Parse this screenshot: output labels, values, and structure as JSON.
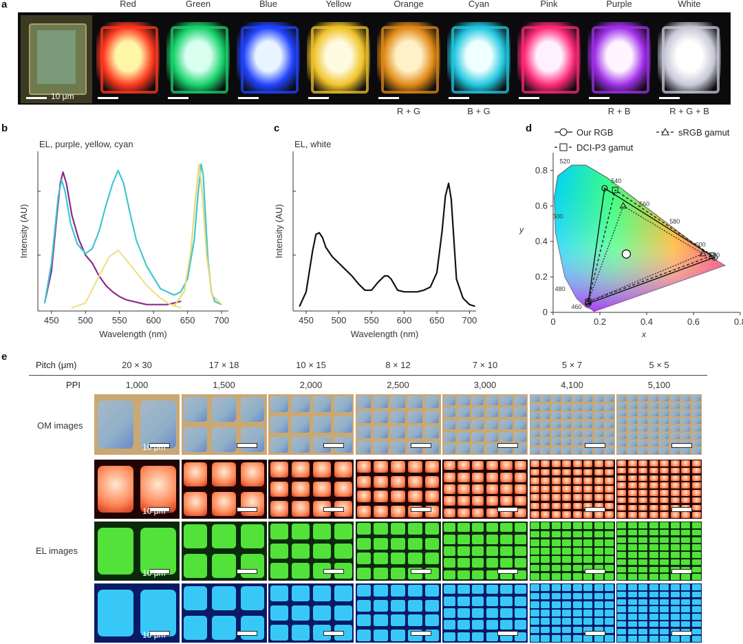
{
  "panel_a": {
    "label": "a",
    "colors": [
      {
        "name": "Red",
        "hex": "#ff3a20",
        "core": "#fff6a8"
      },
      {
        "name": "Green",
        "hex": "#19d36b",
        "core": "#d8fff0"
      },
      {
        "name": "Blue",
        "hex": "#2244ff",
        "core": "#e8f4ff"
      },
      {
        "name": "Yellow",
        "hex": "#f0c22a",
        "core": "#fffbe0"
      },
      {
        "name": "Orange",
        "hex": "#e08a18",
        "core": "#fff2c8"
      },
      {
        "name": "Cyan",
        "hex": "#22c8e0",
        "core": "#f0ffff"
      },
      {
        "name": "Pink",
        "hex": "#ff2a78",
        "core": "#fff0ff"
      },
      {
        "name": "Purple",
        "hex": "#a030e8",
        "core": "#fff4ff"
      },
      {
        "name": "White",
        "hex": "#c8c8d8",
        "core": "#ffffff"
      }
    ],
    "scale_label": "10 μm",
    "combos": [
      "R + G",
      "B + G",
      "R + B",
      "R + G + B"
    ]
  },
  "chart_data": [
    {
      "type": "line",
      "panel": "b",
      "title": "EL, purple, yellow, cyan",
      "xlabel": "Wavelength (nm)",
      "ylabel": "Intensity (AU)",
      "xlim": [
        430,
        710
      ],
      "ylim": [
        0,
        1
      ],
      "xticks": [
        450,
        500,
        550,
        600,
        650,
        700
      ],
      "series": [
        {
          "name": "purple",
          "color": "#8a2a8a",
          "x": [
            440,
            450,
            458,
            463,
            467,
            472,
            480,
            490,
            500,
            510,
            520,
            530,
            540,
            550,
            560,
            570,
            580,
            590,
            600,
            610,
            620,
            630,
            640
          ],
          "values": [
            0.05,
            0.25,
            0.6,
            0.8,
            0.87,
            0.8,
            0.6,
            0.45,
            0.35,
            0.3,
            0.22,
            0.16,
            0.12,
            0.09,
            0.07,
            0.06,
            0.05,
            0.04,
            0.04,
            0.04,
            0.04,
            0.05,
            0.06
          ]
        },
        {
          "name": "yellow",
          "color": "#f0e08a",
          "x": [
            480,
            500,
            520,
            535,
            548,
            560,
            575,
            590,
            610,
            625,
            640
          ],
          "values": [
            0.02,
            0.05,
            0.22,
            0.34,
            0.38,
            0.32,
            0.24,
            0.16,
            0.08,
            0.04,
            0.02
          ]
        },
        {
          "name": "cyan",
          "color": "#3fc6cf",
          "x": [
            440,
            450,
            460,
            465,
            470,
            478,
            488,
            500,
            510,
            520,
            530,
            540,
            548,
            556,
            565,
            575,
            590,
            610,
            630,
            640,
            650,
            660,
            665,
            670,
            673,
            676,
            680,
            685,
            690,
            700
          ],
          "values": [
            0.05,
            0.3,
            0.72,
            0.82,
            0.75,
            0.55,
            0.42,
            0.36,
            0.39,
            0.5,
            0.66,
            0.8,
            0.88,
            0.8,
            0.62,
            0.44,
            0.28,
            0.14,
            0.1,
            0.12,
            0.2,
            0.45,
            0.72,
            0.92,
            0.85,
            0.62,
            0.32,
            0.12,
            0.06,
            0.04
          ]
        },
        {
          "name": "yellow-peak",
          "color": "#e8d878",
          "x": [
            630,
            645,
            655,
            662,
            667,
            672,
            678,
            686,
            700
          ],
          "values": [
            0.03,
            0.12,
            0.38,
            0.72,
            0.92,
            0.72,
            0.35,
            0.1,
            0.04
          ]
        }
      ]
    },
    {
      "type": "line",
      "panel": "c",
      "title": "EL, white",
      "xlabel": "Wavelength (nm)",
      "ylabel": "Intensity (AU)",
      "xlim": [
        430,
        710
      ],
      "ylim": [
        0,
        1
      ],
      "xticks": [
        450,
        500,
        550,
        600,
        650,
        700
      ],
      "series": [
        {
          "name": "white",
          "color": "#111111",
          "x": [
            440,
            450,
            460,
            465,
            470,
            475,
            480,
            490,
            500,
            510,
            520,
            530,
            540,
            550,
            560,
            570,
            575,
            580,
            590,
            600,
            610,
            620,
            630,
            640,
            650,
            658,
            663,
            668,
            672,
            676,
            680,
            690,
            700,
            708
          ],
          "values": [
            0.03,
            0.12,
            0.38,
            0.48,
            0.49,
            0.46,
            0.4,
            0.34,
            0.3,
            0.26,
            0.22,
            0.17,
            0.13,
            0.13,
            0.18,
            0.22,
            0.22,
            0.2,
            0.13,
            0.12,
            0.12,
            0.12,
            0.13,
            0.15,
            0.24,
            0.5,
            0.72,
            0.8,
            0.7,
            0.45,
            0.2,
            0.08,
            0.04,
            0.03
          ]
        }
      ]
    },
    {
      "type": "scatter",
      "panel": "d",
      "title": "",
      "xlabel": "x",
      "ylabel": "y",
      "xlim": [
        0,
        0.8
      ],
      "ylim": [
        0,
        0.9
      ],
      "xticks": [
        0,
        0.2,
        0.4,
        0.6,
        0.8
      ],
      "xtick_labels": [
        "0",
        "0.2",
        "0.4",
        "0.6",
        "0.8"
      ],
      "yticks": [
        0,
        0.2,
        0.4,
        0.6,
        0.8
      ],
      "ytick_labels": [
        "0",
        "0.2",
        "0.4",
        "0.6",
        "0.8"
      ],
      "legend": [
        {
          "label": "Our RGB",
          "marker": "circle"
        },
        {
          "label": "sRGB gamut",
          "marker": "triangle"
        },
        {
          "label": "DCI-P3 gamut",
          "marker": "square"
        }
      ],
      "spectral_locus": {
        "x": [
          0.175,
          0.17,
          0.16,
          0.14,
          0.1,
          0.05,
          0.01,
          0.005,
          0.02,
          0.08,
          0.14,
          0.23,
          0.3,
          0.37,
          0.44,
          0.51,
          0.58,
          0.64,
          0.69,
          0.735
        ],
        "y": [
          0.005,
          0.01,
          0.02,
          0.03,
          0.08,
          0.2,
          0.45,
          0.65,
          0.77,
          0.83,
          0.83,
          0.76,
          0.69,
          0.62,
          0.55,
          0.48,
          0.41,
          0.35,
          0.3,
          0.265
        ]
      },
      "wavelength_labels": [
        {
          "text": "520",
          "x": 0.05,
          "y": 0.84
        },
        {
          "text": "540",
          "x": 0.27,
          "y": 0.73
        },
        {
          "text": "560",
          "x": 0.39,
          "y": 0.6
        },
        {
          "text": "580",
          "x": 0.52,
          "y": 0.5
        },
        {
          "text": "600",
          "x": 0.63,
          "y": 0.37
        },
        {
          "text": "620",
          "x": 0.69,
          "y": 0.31
        },
        {
          "text": "500",
          "x": 0.02,
          "y": 0.53
        },
        {
          "text": "480",
          "x": 0.03,
          "y": 0.12
        },
        {
          "text": "460",
          "x": 0.1,
          "y": 0.02
        }
      ],
      "our_rgb": [
        [
          0.69,
          0.31
        ],
        [
          0.22,
          0.7
        ],
        [
          0.15,
          0.05
        ]
      ],
      "srgb": [
        [
          0.64,
          0.33
        ],
        [
          0.3,
          0.6
        ],
        [
          0.15,
          0.06
        ]
      ],
      "dcip3": [
        [
          0.68,
          0.32
        ],
        [
          0.265,
          0.69
        ],
        [
          0.15,
          0.06
        ]
      ],
      "white_point": [
        0.313,
        0.329
      ]
    }
  ],
  "panel_e": {
    "label": "e",
    "pitch_label": "Pitch (μm)",
    "ppi_label": "PPI",
    "columns": [
      {
        "pitch": "20 × 30",
        "ppi": "1,000",
        "cols": 2,
        "rows": 1
      },
      {
        "pitch": "17 × 18",
        "ppi": "1,500",
        "cols": 3,
        "rows": 2
      },
      {
        "pitch": "10 × 15",
        "ppi": "2,000",
        "cols": 4,
        "rows": 3
      },
      {
        "pitch": "8 × 12",
        "ppi": "2,500",
        "cols": 5,
        "rows": 4
      },
      {
        "pitch": "7 × 10",
        "ppi": "3,000",
        "cols": 6,
        "rows": 5
      },
      {
        "pitch": "5 × 7",
        "ppi": "4,100",
        "cols": 8,
        "rows": 7
      },
      {
        "pitch": "5 × 5",
        "ppi": "5,100",
        "cols": 8,
        "rows": 8
      }
    ],
    "row_labels": {
      "om": "OM images",
      "el": "EL images"
    },
    "scale_label": "10 μm",
    "rows": [
      {
        "kind": "om",
        "bg": "#caa874",
        "px": "#8fb0c8"
      },
      {
        "kind": "red",
        "bg": "#200404",
        "px": "#ff8858"
      },
      {
        "kind": "green",
        "bg": "#0b2a0b",
        "px": "#52e23a"
      },
      {
        "kind": "blue",
        "bg": "#0a1a66",
        "px": "#38c8f8"
      }
    ]
  }
}
